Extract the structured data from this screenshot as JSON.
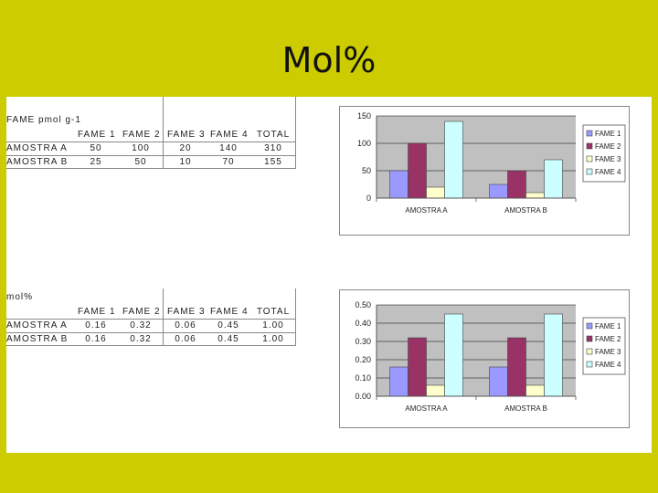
{
  "slide_title": "Mol%",
  "table1": {
    "label": "FAME pmol g-1",
    "columns": [
      "FAME 1",
      "FAME 2",
      "FAME 3",
      "FAME 4",
      "TOTAL"
    ],
    "rows": [
      {
        "name": "AMOSTRA A",
        "values": [
          "50",
          "100",
          "20",
          "140",
          "310"
        ]
      },
      {
        "name": "AMOSTRA B",
        "values": [
          "25",
          "50",
          "10",
          "70",
          "155"
        ]
      }
    ]
  },
  "table2": {
    "label": "mol%",
    "columns": [
      "FAME 1",
      "FAME 2",
      "FAME 3",
      "FAME 4",
      "TOTAL"
    ],
    "rows": [
      {
        "name": "AMOSTRA A",
        "values": [
          "0.16",
          "0.32",
          "0.06",
          "0.45",
          "1.00"
        ]
      },
      {
        "name": "AMOSTRA B",
        "values": [
          "0.16",
          "0.32",
          "0.06",
          "0.45",
          "1.00"
        ]
      }
    ]
  },
  "colors": {
    "fame1": "#9999ff",
    "fame2": "#993366",
    "fame3": "#ffffcc",
    "fame4": "#ccffff",
    "plot_bg": "#c0c0c0"
  },
  "chart_data": [
    {
      "type": "bar",
      "categories": [
        "AMOSTRA A",
        "AMOSTRA B"
      ],
      "series": [
        {
          "name": "FAME 1",
          "values": [
            50,
            25
          ]
        },
        {
          "name": "FAME 2",
          "values": [
            100,
            50
          ]
        },
        {
          "name": "FAME 3",
          "values": [
            20,
            10
          ]
        },
        {
          "name": "FAME 4",
          "values": [
            140,
            70
          ]
        }
      ],
      "ylim": [
        0,
        150
      ],
      "yticks": [
        "0",
        "50",
        "100",
        "150"
      ],
      "grid": true,
      "legend": "right"
    },
    {
      "type": "bar",
      "categories": [
        "AMOSTRA A",
        "AMOSTRA B"
      ],
      "series": [
        {
          "name": "FAME 1",
          "values": [
            0.16,
            0.16
          ]
        },
        {
          "name": "FAME 2",
          "values": [
            0.32,
            0.32
          ]
        },
        {
          "name": "FAME 3",
          "values": [
            0.06,
            0.06
          ]
        },
        {
          "name": "FAME 4",
          "values": [
            0.45,
            0.45
          ]
        }
      ],
      "ylim": [
        0,
        0.5
      ],
      "yticks": [
        "0.00",
        "0.10",
        "0.20",
        "0.30",
        "0.40",
        "0.50"
      ],
      "grid": true,
      "legend": "right"
    }
  ]
}
